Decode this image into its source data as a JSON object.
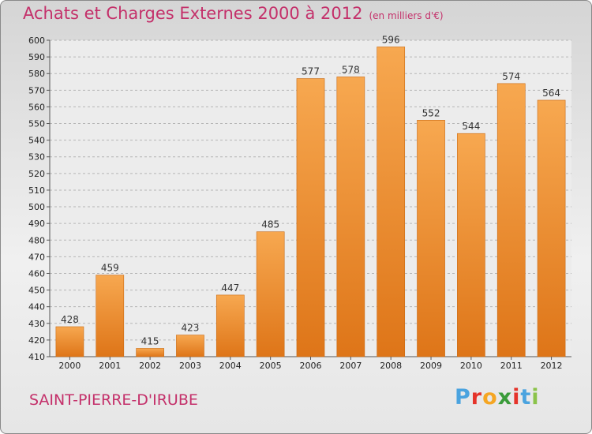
{
  "chart_data": {
    "type": "bar",
    "title": "Achats et Charges Externes 2000 à 2012",
    "subtitle": "(en milliers d'€)",
    "categories": [
      "2000",
      "2001",
      "2002",
      "2003",
      "2004",
      "2005",
      "2006",
      "2007",
      "2008",
      "2009",
      "2010",
      "2011",
      "2012"
    ],
    "values": [
      428,
      459,
      415,
      423,
      447,
      485,
      577,
      578,
      596,
      552,
      544,
      574,
      564
    ],
    "data_labels": [
      "428",
      "459",
      "415",
      "423",
      "447",
      "485",
      "577",
      "578",
      "596",
      "552",
      "544",
      "574",
      "564"
    ],
    "xlabel": "",
    "ylabel": "",
    "ylim": [
      410,
      600
    ],
    "yticks": [
      410,
      420,
      430,
      440,
      450,
      460,
      470,
      480,
      490,
      500,
      510,
      520,
      530,
      540,
      550,
      560,
      570,
      580,
      590,
      600
    ],
    "grid": true,
    "bar_color": "#f29a43"
  },
  "footer": {
    "place": "SAINT-PIERRE-D'IRUBE",
    "logo_letters": [
      "P",
      "r",
      "o",
      "x",
      "i",
      "t",
      "i"
    ],
    "logo_colors": [
      "#4aa3df",
      "#e5332a",
      "#f5a623",
      "#3a9b3a",
      "#e5332a",
      "#4aa3df",
      "#8bc34a"
    ]
  }
}
